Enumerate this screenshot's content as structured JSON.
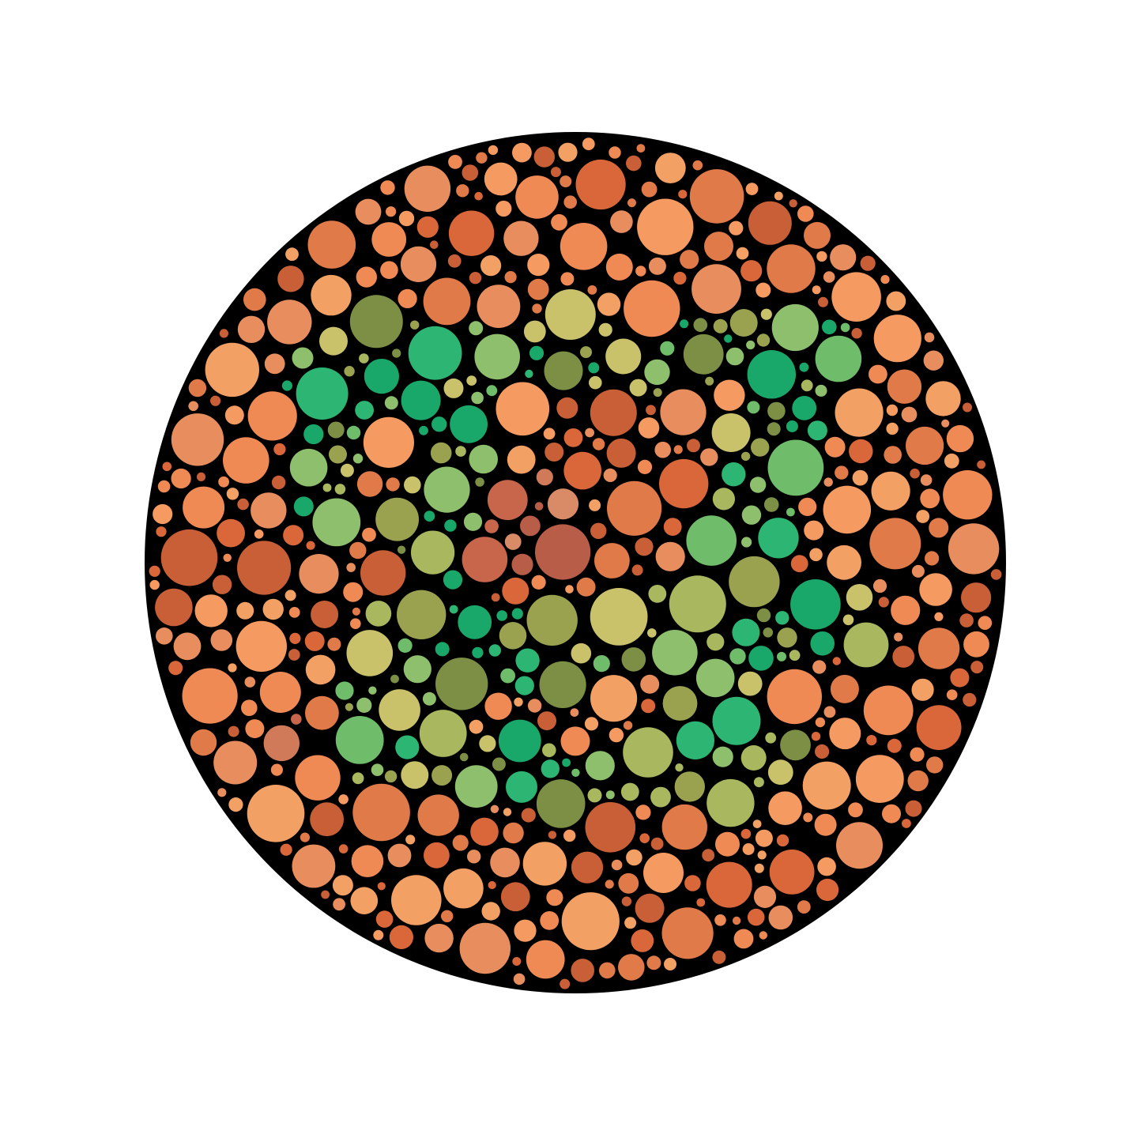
{
  "plate": {
    "kind": "ishihara-color-vision-plate",
    "hidden_figure": "7",
    "colors": {
      "background": "#ffffff",
      "disc": "#000000",
      "orange": [
        "#d9673a",
        "#f08a55",
        "#f2a064",
        "#e07a48",
        "#c95f36",
        "#f59a60",
        "#e88e5e"
      ],
      "red_brown": [
        "#c8664c",
        "#d07a5a",
        "#b85d48",
        "#d98a66"
      ],
      "green": [
        "#1aa86a",
        "#2cb573",
        "#6fbd6a",
        "#8ebf6c",
        "#7d8f45",
        "#9aa24f",
        "#c9c26a",
        "#a9b85f"
      ]
    }
  }
}
